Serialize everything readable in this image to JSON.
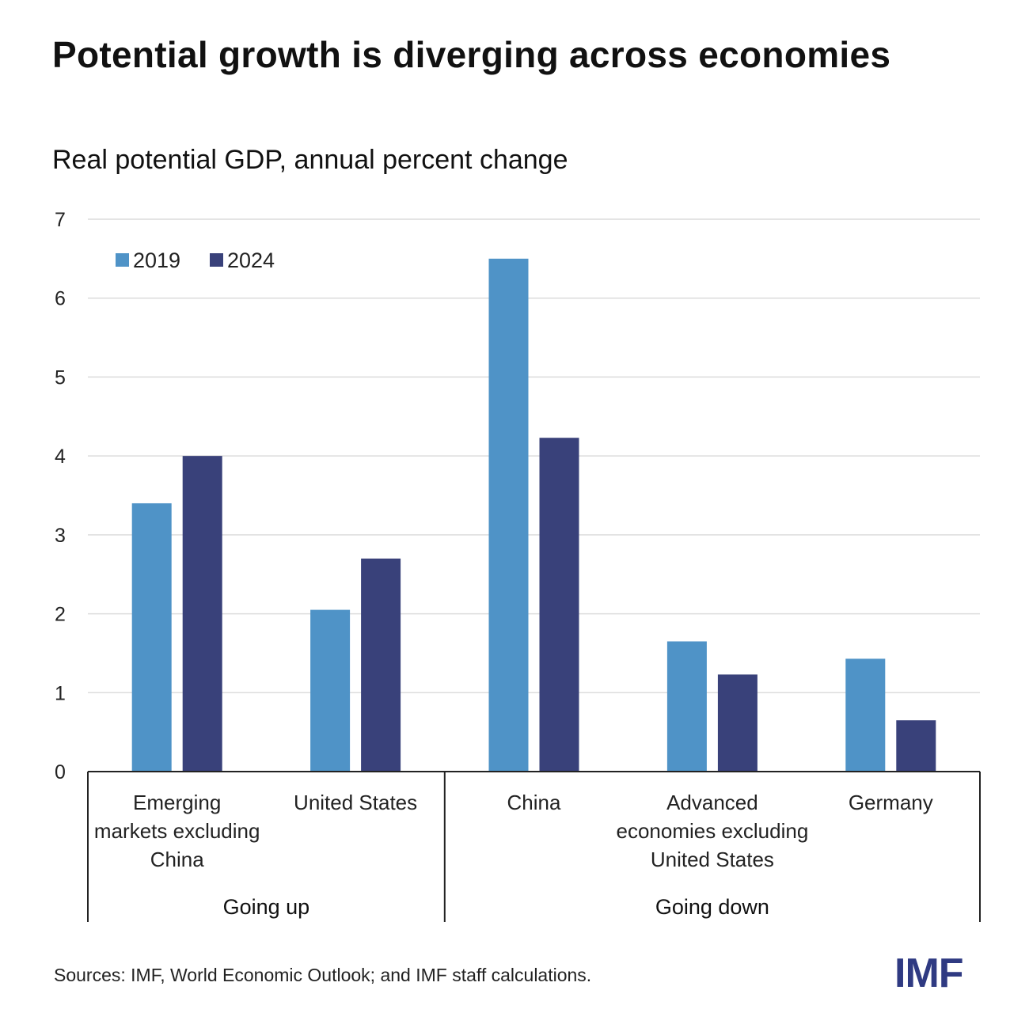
{
  "title": "Potential growth is diverging across economies",
  "subtitle": "Real potential GDP, annual percent change",
  "source": "Sources: IMF, World Economic Outlook; and IMF staff calculations.",
  "logo": "IMF",
  "chart_data": {
    "type": "bar",
    "ylim": [
      0,
      7
    ],
    "yticks": [
      "0",
      "1",
      "2",
      "3",
      "4",
      "5",
      "6",
      "7"
    ],
    "grid": true,
    "legend_position": "top-left",
    "categories": [
      [
        "Emerging",
        "markets excluding",
        "China"
      ],
      [
        "United States"
      ],
      [
        "China"
      ],
      [
        "Advanced",
        "economies excluding",
        "United States"
      ],
      [
        "Germany"
      ]
    ],
    "groups": [
      {
        "label": "Going up",
        "categories": 2
      },
      {
        "label": "Going down",
        "categories": 3
      }
    ],
    "series": [
      {
        "name": "2019",
        "color": "#4f93c7",
        "values": [
          3.4,
          2.05,
          6.5,
          1.65,
          1.43
        ]
      },
      {
        "name": "2024",
        "color": "#39417a",
        "values": [
          4.0,
          2.7,
          4.23,
          1.23,
          0.65
        ]
      }
    ]
  }
}
